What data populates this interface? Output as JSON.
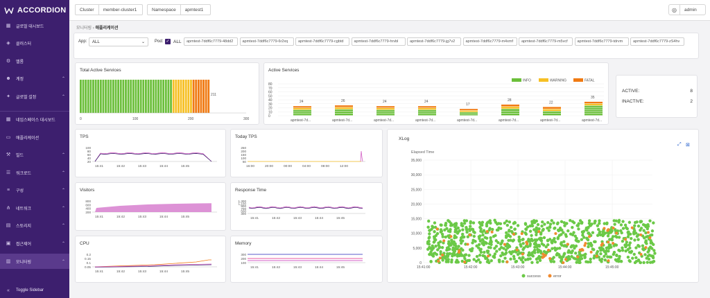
{
  "app": {
    "name": "ACCORDION"
  },
  "topbar": {
    "cluster_label": "Cluster",
    "cluster_value": "member-cluster1",
    "namespace_label": "Namespace",
    "namespace_value": "apmtest1",
    "user": "admin"
  },
  "sidebar": {
    "items": [
      {
        "label": "글로벌 대시보드",
        "icon": "grid-icon",
        "chevron": false
      },
      {
        "label": "클러스터",
        "icon": "cluster-icon",
        "chevron": false
      },
      {
        "label": "멜롬",
        "icon": "gear-icon",
        "chevron": false
      },
      {
        "label": "계정",
        "icon": "users-icon",
        "chevron": true
      },
      {
        "label": "글로벌 설정",
        "icon": "settings-icon",
        "chevron": true
      },
      {
        "label": "네임스페이스 대시보드",
        "icon": "grid-icon",
        "chevron": false
      },
      {
        "label": "애플리케이션",
        "icon": "app-icon",
        "chevron": false
      },
      {
        "label": "빌드",
        "icon": "build-icon",
        "chevron": true
      },
      {
        "label": "워크로드",
        "icon": "workload-icon",
        "chevron": true
      },
      {
        "label": "구성",
        "icon": "config-icon",
        "chevron": true
      },
      {
        "label": "네트워크",
        "icon": "network-icon",
        "chevron": true
      },
      {
        "label": "스토리지",
        "icon": "storage-icon",
        "chevron": true
      },
      {
        "label": "접근제어",
        "icon": "lock-icon",
        "chevron": true
      },
      {
        "label": "모니터링",
        "icon": "monitor-icon",
        "chevron": true
      }
    ],
    "toggle": "Toggle Sidebar"
  },
  "breadcrumb": {
    "parent": "모니터링",
    "current": "애플리케이션"
  },
  "filter": {
    "app_label": "App:",
    "app_value": "ALL",
    "pod_label": "Pod:",
    "all_label": "ALL",
    "pods": [
      "apmtest-7ddf6c7779-48dd2",
      "apmtest-7ddf6c7779-6r2xq",
      "apmtest-7ddf6c7779-cgbtd",
      "apmtest-7ddf6c7779-hrvbl",
      "apmtest-7ddf6c7779-jg7v2",
      "apmtest-7ddf6c7779-m4xmf",
      "apmtest-7ddf6c7779-m5vcf",
      "apmtest-7ddf6c7779-tdrvm",
      "apmtest-7ddf6c7779-zS4hv"
    ]
  },
  "total_active": {
    "title": "Total Active Services",
    "total_label": "211",
    "ticks": [
      "0",
      "100",
      "200",
      "300"
    ]
  },
  "active_services": {
    "title": "Active Services",
    "legend": [
      "INFO",
      "WARNING",
      "FATAL"
    ],
    "yticks": [
      "80",
      "70",
      "60",
      "50",
      "40",
      "30",
      "20",
      "10",
      "0"
    ],
    "categories": [
      "apmtest-7d...",
      "apmtest-7d...",
      "apmtest-7d...",
      "apmtest-7d...",
      "apmtest-7d...",
      "apmtest-7d...",
      "apmtest-7d...",
      "apmtest-7d..."
    ],
    "values": [
      "24",
      "26",
      "24",
      "24",
      "17",
      "28",
      "22",
      "35"
    ]
  },
  "status": {
    "active_label": "ACTIVE:",
    "active_value": "8",
    "inactive_label": "INACTIVE:",
    "inactive_value": "2"
  },
  "colors": {
    "info": "#6bbf3a",
    "warning": "#f6c025",
    "fatal": "#f07a12",
    "purple": "#3d1f6e",
    "pink": "#d35ec4",
    "success": "#6bc947",
    "error": "#f08a2e"
  },
  "tps": {
    "title": "TPS",
    "yticks": [
      "100",
      "80",
      "60",
      "40",
      "20"
    ],
    "xticks": [
      "15:41",
      "15:42",
      "15:43",
      "15:44",
      "15:45"
    ]
  },
  "today_tps": {
    "title": "Today TPS",
    "yticks": [
      "250",
      "200",
      "150",
      "100",
      "50"
    ],
    "xticks": [
      "16:00",
      "20:00",
      "00:00",
      "04:00",
      "08:00",
      "12:00"
    ]
  },
  "visitors": {
    "title": "Visitors",
    "yticks": [
      "800",
      "600",
      "400",
      "200"
    ],
    "xticks": [
      "15:41",
      "15:42",
      "15:43",
      "15:44",
      "15:45"
    ]
  },
  "response_time": {
    "title": "Response Time",
    "yticks": [
      "1,300",
      "1,100",
      "900",
      "700",
      "500",
      "300"
    ],
    "xticks": [
      "15:41",
      "15:42",
      "15:43",
      "15:44",
      "15:45"
    ]
  },
  "cpu": {
    "title": "CPU",
    "yticks": [
      "0.2",
      "0.15",
      "0.1",
      "0.05"
    ],
    "xticks": [
      "15:41",
      "15:42",
      "15:43",
      "15:44",
      "15:45"
    ]
  },
  "memory": {
    "title": "Memory",
    "yticks": [
      "300",
      "200",
      "100"
    ],
    "xticks": [
      "15:41",
      "15:42",
      "15:43",
      "15:44",
      "15:45"
    ]
  },
  "xlog": {
    "title": "XLog",
    "ylabel": "Elapsed Time",
    "yticks": [
      "35,000",
      "30,000",
      "25,000",
      "20,000",
      "15,000",
      "10,000",
      "5,000",
      "0"
    ],
    "xticks": [
      "15:41:00",
      "15:42:00",
      "15:43:00",
      "15:44:00",
      "15:45:00"
    ],
    "legend": [
      "success",
      "error"
    ]
  }
}
